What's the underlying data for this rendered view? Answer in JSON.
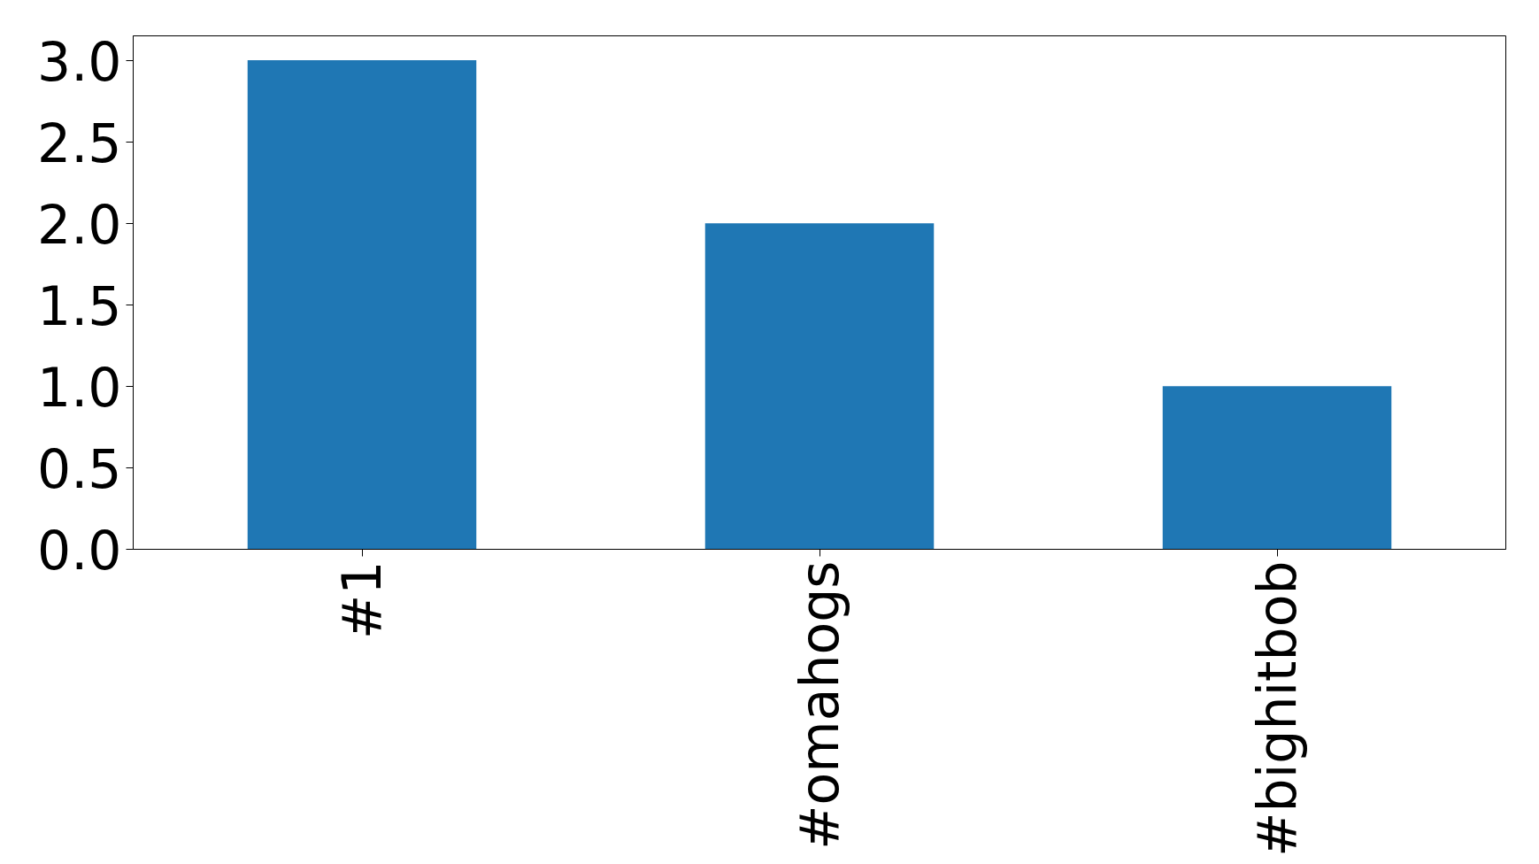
{
  "chart_data": {
    "type": "bar",
    "categories": [
      "#1",
      "#omahogs",
      "#bighitbob"
    ],
    "values": [
      3,
      2,
      1
    ],
    "color": "#1f77b4",
    "ylim": [
      0,
      3.15
    ],
    "yticks": [
      {
        "value": 0,
        "label": "0.0"
      },
      {
        "value": 0.5,
        "label": "0.5"
      },
      {
        "value": 1,
        "label": "1.0"
      },
      {
        "value": 1.5,
        "label": "1.5"
      },
      {
        "value": 2,
        "label": "2.0"
      },
      {
        "value": 2.5,
        "label": "2.5"
      },
      {
        "value": 3,
        "label": "3.0"
      }
    ],
    "grid": false
  }
}
